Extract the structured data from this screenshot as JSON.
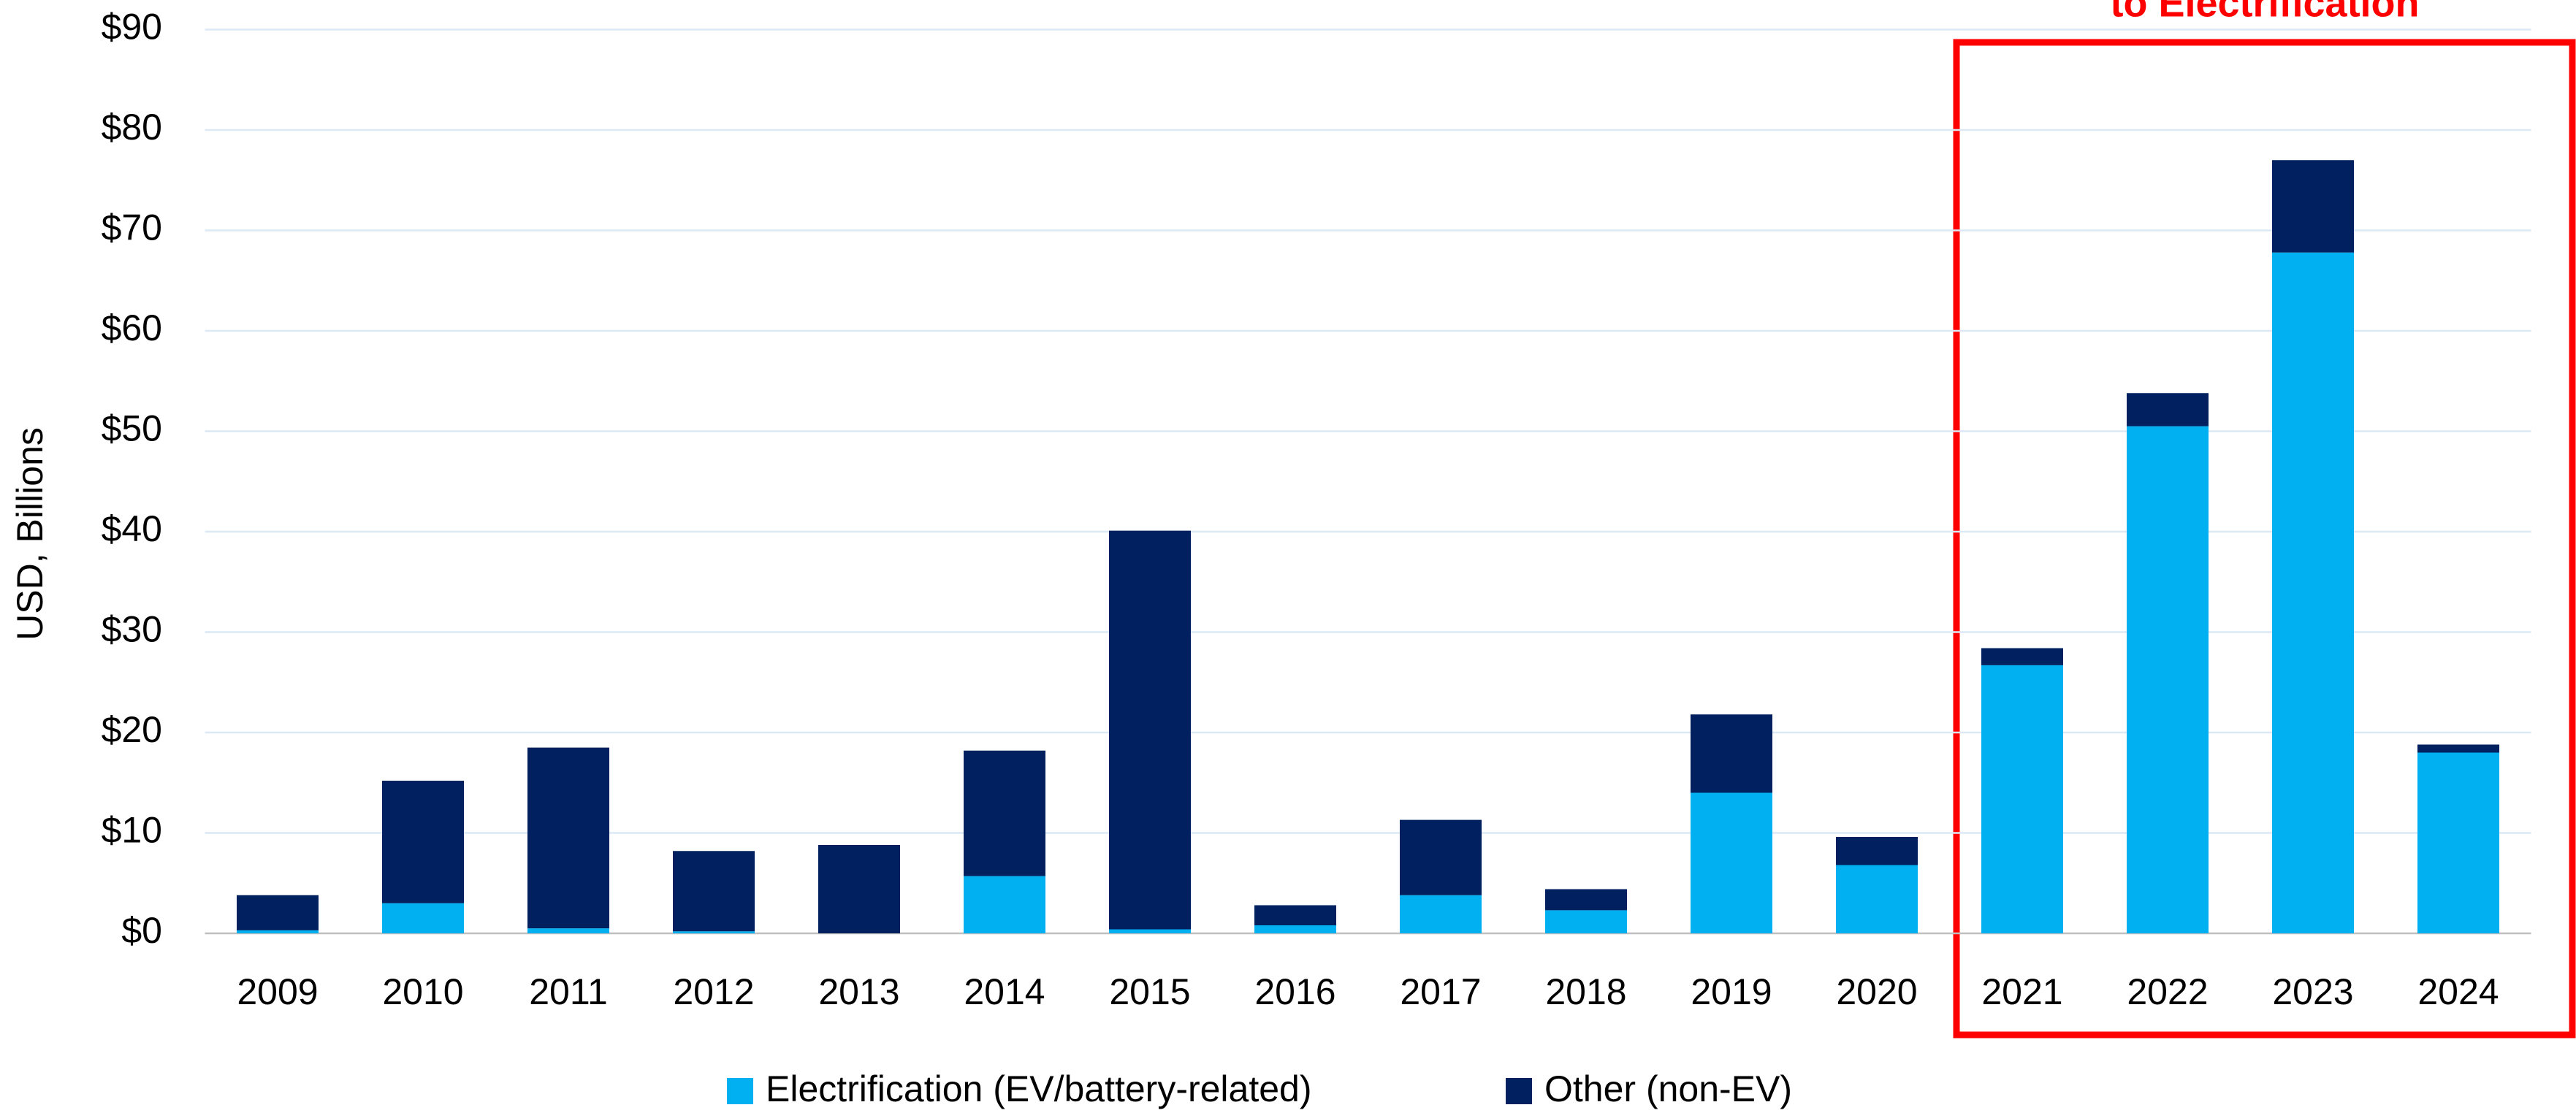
{
  "chart_data": {
    "type": "stacked_bar",
    "annotation": "to Electrification",
    "y_label": "USD, Billions",
    "categories": [
      "2009",
      "2010",
      "2011",
      "2012",
      "2013",
      "2014",
      "2015",
      "2016",
      "2017",
      "2018",
      "2019",
      "2020",
      "2021",
      "2022",
      "2023",
      "2024"
    ],
    "series": [
      {
        "name": "Electrification (EV/battery-related)",
        "color": "#00b0f0",
        "values": [
          0.3,
          3.0,
          0.5,
          0.2,
          0,
          5.7,
          0.4,
          0.8,
          3.8,
          2.3,
          14.0,
          6.8,
          26.7,
          50.5,
          67.8,
          18.0
        ]
      },
      {
        "name": "Other (non-EV)",
        "color": "#002060",
        "values": [
          3.5,
          12.2,
          18.0,
          8.0,
          8.8,
          12.5,
          39.7,
          2.0,
          7.5,
          2.1,
          7.8,
          2.8,
          1.7,
          3.3,
          9.2,
          0.8
        ]
      }
    ],
    "ylim": [
      0,
      90
    ],
    "yticks": [
      {
        "value": 0,
        "label": "$0"
      },
      {
        "value": 10,
        "label": "$10"
      },
      {
        "value": 20,
        "label": "$20"
      },
      {
        "value": 30,
        "label": "$30"
      },
      {
        "value": 40,
        "label": "$40"
      },
      {
        "value": 50,
        "label": "$50"
      },
      {
        "value": 60,
        "label": "$60"
      },
      {
        "value": 70,
        "label": "$70"
      },
      {
        "value": 80,
        "label": "$80"
      },
      {
        "value": 90,
        "label": "$90"
      }
    ],
    "grid": true,
    "legend": "bottom"
  }
}
